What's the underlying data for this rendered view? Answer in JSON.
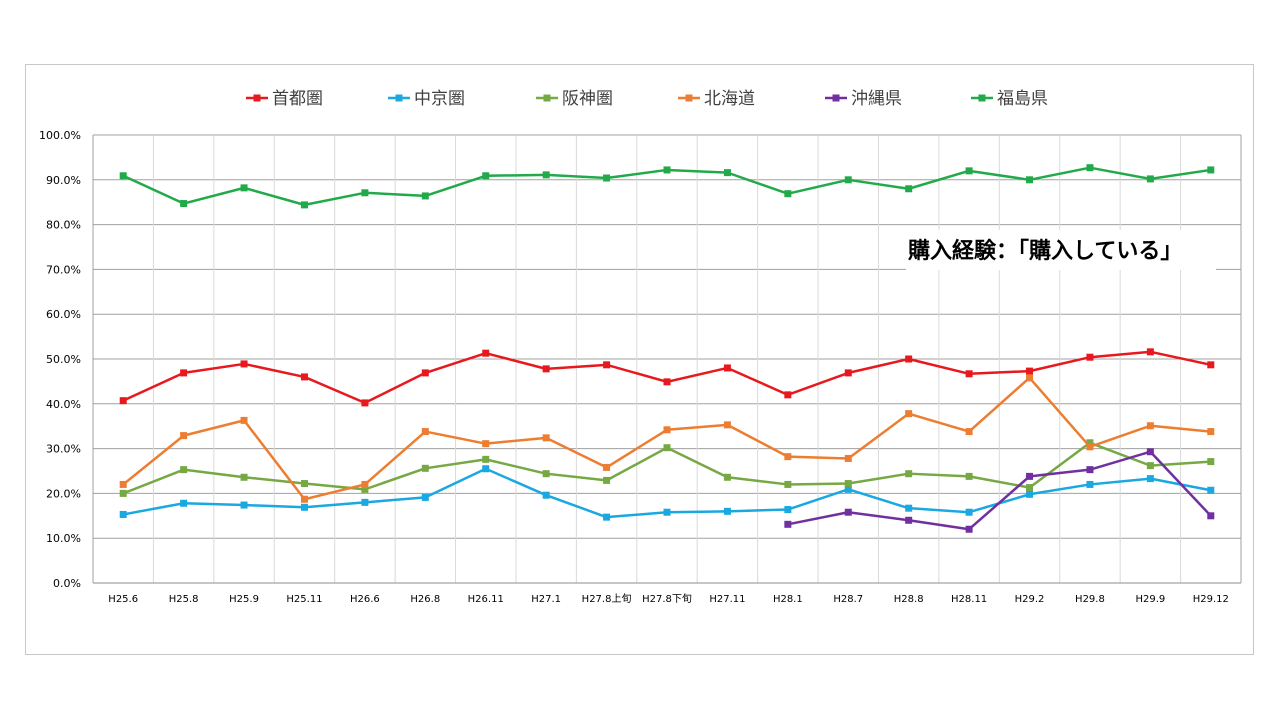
{
  "chart_data": {
    "type": "line",
    "title": "",
    "xlabel": "",
    "ylabel": "",
    "ylim": [
      0,
      100
    ],
    "yticks": [
      "0.0%",
      "10.0%",
      "20.0%",
      "30.0%",
      "40.0%",
      "50.0%",
      "60.0%",
      "70.0%",
      "80.0%",
      "90.0%",
      "100.0%"
    ],
    "grid": true,
    "legend_position": "top",
    "annotation": "購入経験：「購入している」",
    "categories": [
      "H25.6",
      "H25.8",
      "H25.9",
      "H25.11",
      "H26.6",
      "H26.8",
      "H26.11",
      "H27.1",
      "H27.8上旬",
      "H27.8下旬",
      "H27.11",
      "H28.1",
      "H28.7",
      "H28.8",
      "H28.11",
      "H29.2",
      "H29.8",
      "H29.9",
      "H29.12"
    ],
    "series": [
      {
        "name": "首都圏",
        "color": "#e8191e",
        "values": [
          40.7,
          46.9,
          48.9,
          46.0,
          40.2,
          46.9,
          51.3,
          47.8,
          48.7,
          44.9,
          48.0,
          42.0,
          46.9,
          50.0,
          46.7,
          47.3,
          50.4,
          51.6,
          48.7
        ]
      },
      {
        "name": "中京圏",
        "color": "#1aa8e0",
        "values": [
          15.3,
          17.8,
          17.4,
          16.9,
          18.0,
          19.1,
          25.5,
          19.6,
          14.7,
          15.8,
          16.0,
          16.4,
          20.9,
          16.7,
          15.8,
          19.8,
          22.0,
          23.3,
          20.7
        ]
      },
      {
        "name": "阪神圏",
        "color": "#76a844",
        "values": [
          20.0,
          25.3,
          23.6,
          22.2,
          20.9,
          25.6,
          27.6,
          24.4,
          22.9,
          30.2,
          23.6,
          22.0,
          22.2,
          24.4,
          23.8,
          21.3,
          31.3,
          26.2,
          27.1
        ]
      },
      {
        "name": "北海道",
        "color": "#ed7d31",
        "values": [
          22.0,
          32.9,
          36.3,
          18.7,
          22.0,
          33.8,
          31.1,
          32.4,
          25.8,
          34.2,
          35.3,
          28.2,
          27.8,
          37.8,
          33.8,
          45.8,
          30.4,
          35.1,
          33.8
        ]
      },
      {
        "name": "沖縄県",
        "color": "#7030a0",
        "values": [
          null,
          null,
          null,
          null,
          null,
          null,
          null,
          null,
          null,
          null,
          null,
          13.1,
          15.8,
          14.0,
          12.0,
          23.8,
          25.3,
          29.3,
          15.0
        ]
      },
      {
        "name": "福島県",
        "color": "#22aa4a",
        "values": [
          90.9,
          84.7,
          88.2,
          84.4,
          87.1,
          86.4,
          90.9,
          91.1,
          90.4,
          92.2,
          91.6,
          86.9,
          90.0,
          88.0,
          92.0,
          90.0,
          92.7,
          90.2,
          92.2
        ]
      }
    ]
  }
}
